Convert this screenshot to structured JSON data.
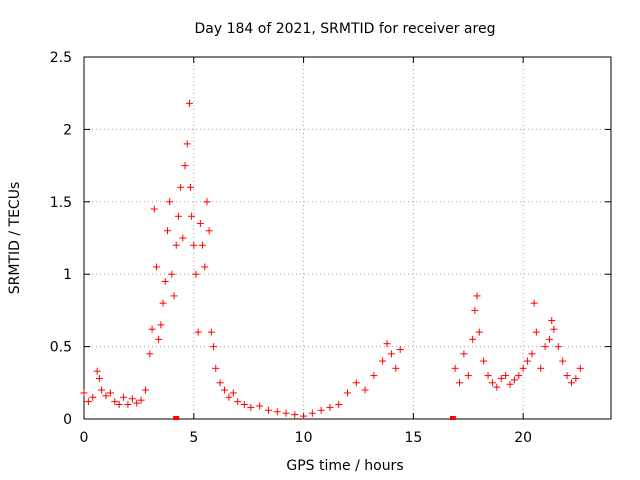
{
  "chart_data": {
    "type": "scatter",
    "title": "Day 184 of 2021, SRMTID for receiver areg",
    "xlabel": "GPS time / hours",
    "ylabel": "SRMTID / TECUs",
    "xlim": [
      0,
      24
    ],
    "ylim": [
      0,
      2.5
    ],
    "grid": true,
    "x_ticks": [
      "0",
      "5",
      "10",
      "15",
      "20"
    ],
    "y_ticks": [
      "0",
      "0.5",
      "1",
      "1.5",
      "2",
      "2.5"
    ],
    "marker": "+",
    "color": "#ff0000",
    "series": [
      {
        "name": "SRMTID",
        "x": [
          0.0,
          0.2,
          0.4,
          0.6,
          0.7,
          0.8,
          1.0,
          1.2,
          1.4,
          1.6,
          1.8,
          2.0,
          2.2,
          2.4,
          2.6,
          2.8,
          3.0,
          3.1,
          3.2,
          3.3,
          3.4,
          3.5,
          3.6,
          3.7,
          3.8,
          3.9,
          4.0,
          4.1,
          4.2,
          4.3,
          4.4,
          4.5,
          4.6,
          4.7,
          4.8,
          4.85,
          4.9,
          5.0,
          5.1,
          5.2,
          5.3,
          5.4,
          5.5,
          5.6,
          5.7,
          5.8,
          5.9,
          6.0,
          6.2,
          6.4,
          6.6,
          6.8,
          7.0,
          7.3,
          7.6,
          8.0,
          8.4,
          8.8,
          9.2,
          9.6,
          10.0,
          10.4,
          10.8,
          11.2,
          11.6,
          12.0,
          12.4,
          12.8,
          13.2,
          13.6,
          13.8,
          14.0,
          14.2,
          14.4,
          16.9,
          17.1,
          17.3,
          17.5,
          17.7,
          17.8,
          17.9,
          18.0,
          18.2,
          18.4,
          18.6,
          18.8,
          19.0,
          19.2,
          19.4,
          19.6,
          19.8,
          20.0,
          20.2,
          20.4,
          20.5,
          20.6,
          20.8,
          21.0,
          21.2,
          21.3,
          21.4,
          21.6,
          21.8,
          22.0,
          22.2,
          22.4,
          22.6
        ],
        "y": [
          0.18,
          0.12,
          0.15,
          0.33,
          0.28,
          0.2,
          0.16,
          0.18,
          0.12,
          0.1,
          0.15,
          0.1,
          0.14,
          0.11,
          0.13,
          0.2,
          0.45,
          0.62,
          1.45,
          1.05,
          0.55,
          0.65,
          0.8,
          0.95,
          1.3,
          1.5,
          1.0,
          0.85,
          1.2,
          1.4,
          1.6,
          1.25,
          1.75,
          1.9,
          2.18,
          1.6,
          1.4,
          1.2,
          1.0,
          0.6,
          1.35,
          1.2,
          1.05,
          1.5,
          1.3,
          0.6,
          0.5,
          0.35,
          0.25,
          0.2,
          0.15,
          0.18,
          0.12,
          0.1,
          0.08,
          0.09,
          0.06,
          0.05,
          0.04,
          0.03,
          0.02,
          0.04,
          0.06,
          0.08,
          0.1,
          0.18,
          0.25,
          0.2,
          0.3,
          0.4,
          0.52,
          0.45,
          0.35,
          0.48,
          0.35,
          0.25,
          0.45,
          0.3,
          0.55,
          0.75,
          0.85,
          0.6,
          0.4,
          0.3,
          0.25,
          0.22,
          0.28,
          0.3,
          0.24,
          0.27,
          0.3,
          0.35,
          0.4,
          0.45,
          0.8,
          0.6,
          0.35,
          0.5,
          0.55,
          0.68,
          0.62,
          0.5,
          0.4,
          0.3,
          0.25,
          0.28,
          0.35
        ]
      }
    ],
    "flagged_x": [
      4.2,
      16.8
    ]
  }
}
